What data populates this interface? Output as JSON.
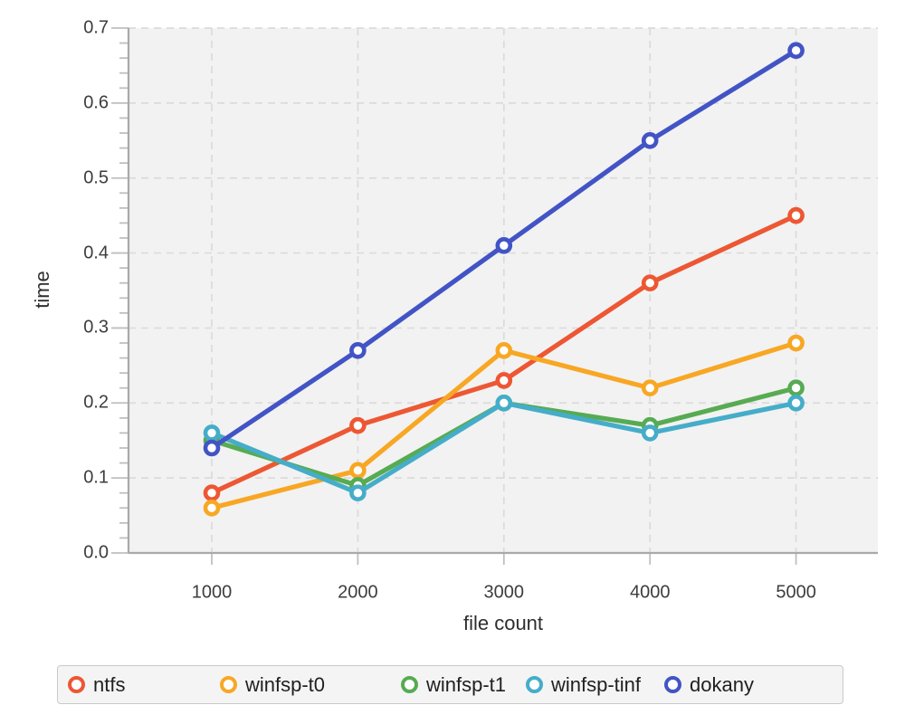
{
  "chart_data": {
    "type": "line",
    "x": [
      1000,
      2000,
      3000,
      4000,
      5000
    ],
    "series": [
      {
        "name": "ntfs",
        "color": "#ED5733",
        "values": [
          0.08,
          0.17,
          0.23,
          0.36,
          0.45
        ]
      },
      {
        "name": "winfsp-t0",
        "color": "#F8A724",
        "values": [
          0.06,
          0.11,
          0.27,
          0.22,
          0.28
        ]
      },
      {
        "name": "winfsp-t1",
        "color": "#57AB52",
        "values": [
          0.15,
          0.09,
          0.2,
          0.17,
          0.22
        ]
      },
      {
        "name": "winfsp-tinf",
        "color": "#45ADC9",
        "values": [
          0.16,
          0.08,
          0.2,
          0.16,
          0.2
        ]
      },
      {
        "name": "dokany",
        "color": "#4254C5",
        "values": [
          0.14,
          0.27,
          0.41,
          0.55,
          0.67
        ]
      }
    ],
    "title": "",
    "xlabel": "file count",
    "ylabel": "time",
    "xlim": [
      430,
      5560
    ],
    "ylim": [
      0.0,
      0.7
    ],
    "xticks": [
      1000,
      2000,
      3000,
      4000,
      5000
    ],
    "xtick_labels": [
      "1000",
      "2000",
      "3000",
      "4000",
      "5000"
    ],
    "yticks": [
      0.0,
      0.1,
      0.2,
      0.3,
      0.4,
      0.5,
      0.6,
      0.7
    ],
    "ytick_labels": [
      "0.0",
      "0.1",
      "0.2",
      "0.3",
      "0.4",
      "0.5",
      "0.6",
      "0.7"
    ],
    "y_minor_tick_step": 0.02,
    "grid": true,
    "grid_style": "dashed",
    "marker": "open-circle",
    "legend_position": "bottom"
  },
  "colors": {
    "plot_background": "#F2F2F2",
    "gridline": "#DBDBDB",
    "spine": "#A9A9A9",
    "tick": "#BFBFBF",
    "tick_label": "#3D3D3D",
    "axis_label": "#2E2E2E",
    "legend_background": "#F4F4F5",
    "legend_border": "#C9C9C9",
    "marker_fill": "#FFFFFF"
  }
}
